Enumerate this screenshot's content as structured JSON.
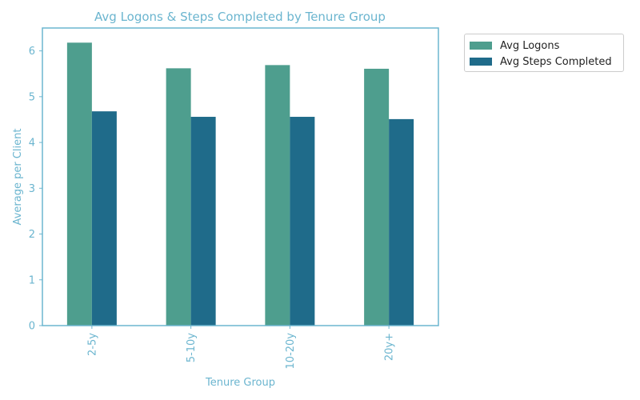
{
  "colors": {
    "text_accent": "#6bb5cf",
    "series_1": "#4e9e8e",
    "series_2": "#1f6b8a",
    "axes": "#6bb5cf"
  },
  "chart_data": {
    "type": "bar",
    "title": "Avg Logons & Steps Completed by Tenure Group",
    "xlabel": "Tenure Group",
    "ylabel": "Average per Client",
    "categories": [
      "2-5y",
      "5-10y",
      "10-20y",
      "20y+"
    ],
    "series": [
      {
        "name": "Avg Logons",
        "values": [
          6.18,
          5.62,
          5.69,
          5.61
        ]
      },
      {
        "name": "Avg Steps Completed",
        "values": [
          4.68,
          4.56,
          4.56,
          4.51
        ]
      }
    ],
    "ylim": [
      0,
      6.5
    ],
    "yticks": [
      0,
      1,
      2,
      3,
      4,
      5,
      6
    ],
    "grid": false,
    "legend_position": "outside-top-right"
  }
}
